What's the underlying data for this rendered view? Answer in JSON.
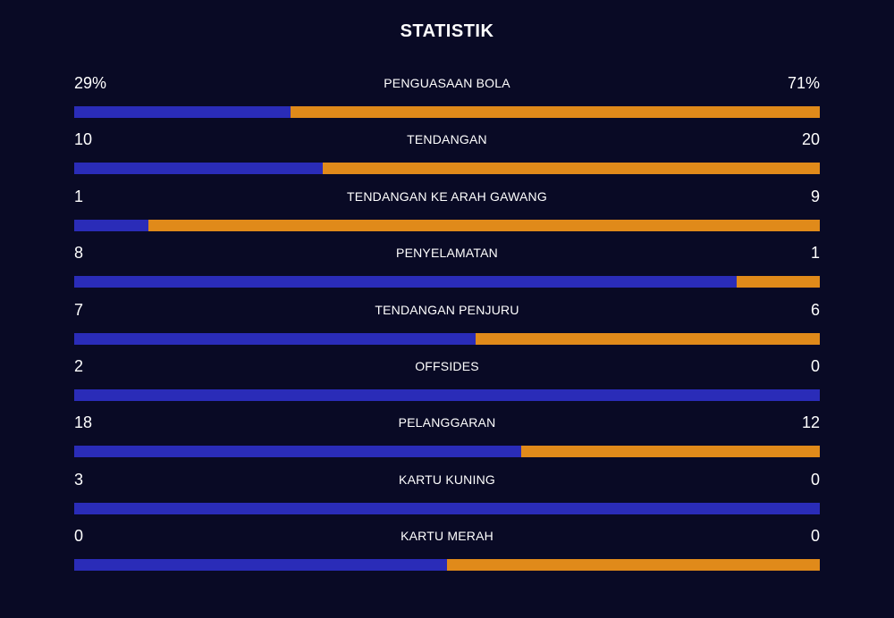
{
  "title": "STATISTIK",
  "colors": {
    "background": "#090a25",
    "home_bar": "#2a2cb8",
    "away_bar": "#e08a1a"
  },
  "stats": [
    {
      "label": "PENGUASAAN BOLA",
      "home": "29%",
      "away": "71%",
      "home_share": 0.29
    },
    {
      "label": "TENDANGAN",
      "home": "10",
      "away": "20",
      "home_share": 0.3333
    },
    {
      "label": "TENDANGAN KE ARAH GAWANG",
      "home": "1",
      "away": "9",
      "home_share": 0.1
    },
    {
      "label": "PENYELAMATAN",
      "home": "8",
      "away": "1",
      "home_share": 0.8889
    },
    {
      "label": "TENDANGAN PENJURU",
      "home": "7",
      "away": "6",
      "home_share": 0.5385
    },
    {
      "label": "OFFSIDES",
      "home": "2",
      "away": "0",
      "home_share": 1.0
    },
    {
      "label": "PELANGGARAN",
      "home": "18",
      "away": "12",
      "home_share": 0.6
    },
    {
      "label": "KARTU KUNING",
      "home": "3",
      "away": "0",
      "home_share": 1.0
    },
    {
      "label": "KARTU MERAH",
      "home": "0",
      "away": "0",
      "home_share": 0.5
    }
  ]
}
